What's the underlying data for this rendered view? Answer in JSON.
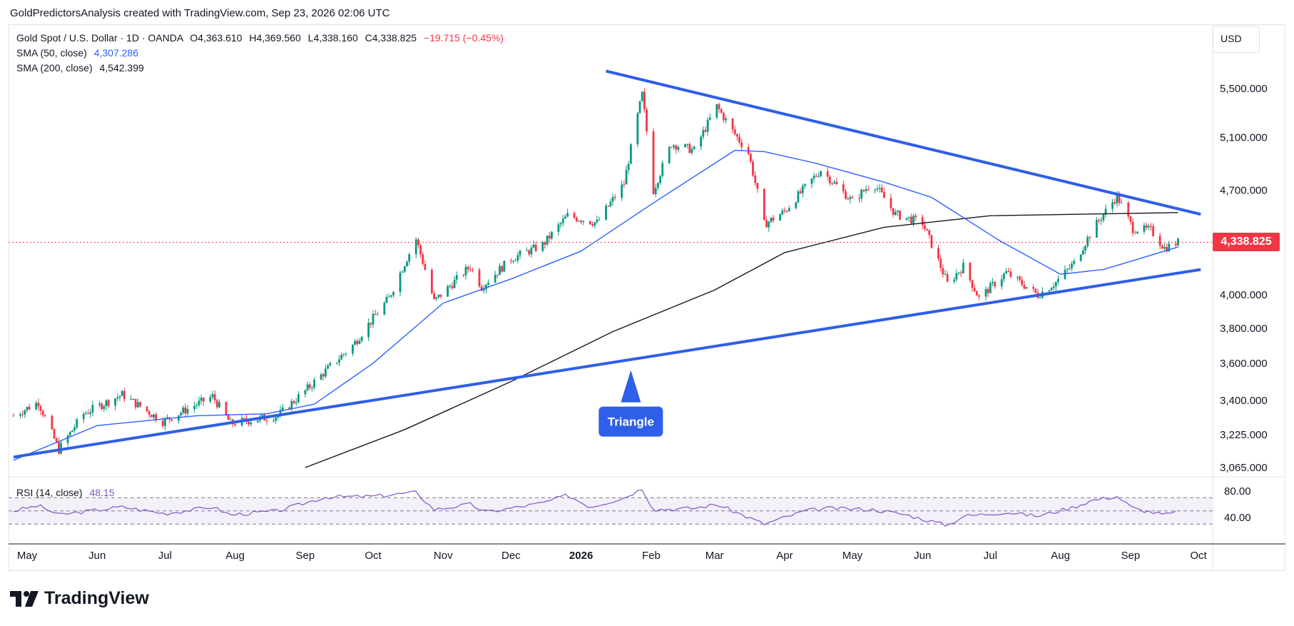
{
  "header": {
    "attribution": "GoldPredictorsAnalysis created with TradingView.com, Sep 23, 2026 02:06 UTC"
  },
  "legend": {
    "symbol": "Gold Spot / U.S. Dollar · 1D · OANDA",
    "open": "O4,363.610",
    "high": "H4,369.560",
    "low": "L4,338.160",
    "close": "C4,338.825",
    "change": "−19.715 (−0.45%)",
    "sma50_label": "SMA (50, close)",
    "sma50_value": "4,307.286",
    "sma200_label": "SMA (200, close)",
    "sma200_value": "4,542.399",
    "rsi_label": "RSI (14, close)",
    "rsi_value": "48.15"
  },
  "price_scale": {
    "currency": "USD",
    "last_price": "4,338.825"
  },
  "brand": {
    "name": "TradingView"
  },
  "colors": {
    "up": "#089981",
    "down": "#f23645",
    "sma50": "#2962ff",
    "sma200": "#131722",
    "trendline": "#2f5fe8",
    "rsi": "#7e57c2",
    "last_price": "#f23645"
  },
  "chart_data": {
    "type": "candlestick",
    "title": "Gold Spot / U.S. Dollar · 1D · OANDA",
    "y_ticks": [
      3065,
      3225,
      3400,
      3600,
      3800,
      4000,
      4700,
      5100,
      5500
    ],
    "y_tick_labels": [
      "3,065.000",
      "3,225.000",
      "3,400.000",
      "3,600.000",
      "3,800.000",
      "4,000.000",
      "4,700.000",
      "5,100.000",
      "5,500.000"
    ],
    "x_tick_labels": [
      "May",
      "Jun",
      "Jul",
      "Aug",
      "Sep",
      "Oct",
      "Nov",
      "Dec",
      "2026",
      "Feb",
      "Mar",
      "Apr",
      "May",
      "Jun",
      "Jul",
      "Aug",
      "Sep",
      "Oct"
    ],
    "x_tick_dates": [
      "2025-05-01",
      "2025-06-01",
      "2025-07-01",
      "2025-08-01",
      "2025-09-01",
      "2025-10-01",
      "2025-11-01",
      "2025-12-01",
      "2026-01-01",
      "2026-02-01",
      "2026-03-01",
      "2026-04-01",
      "2026-05-01",
      "2026-06-01",
      "2026-07-01",
      "2026-08-01",
      "2026-09-01",
      "2026-10-01"
    ],
    "price_path": [
      {
        "date": "2025-04-25",
        "price": 3320
      },
      {
        "date": "2025-05-06",
        "price": 3390
      },
      {
        "date": "2025-05-15",
        "price": 3150
      },
      {
        "date": "2025-05-26",
        "price": 3330
      },
      {
        "date": "2025-06-12",
        "price": 3430
      },
      {
        "date": "2025-06-30",
        "price": 3290
      },
      {
        "date": "2025-07-22",
        "price": 3420
      },
      {
        "date": "2025-07-30",
        "price": 3280
      },
      {
        "date": "2025-08-20",
        "price": 3320
      },
      {
        "date": "2025-09-01",
        "price": 3450
      },
      {
        "date": "2025-09-22",
        "price": 3700
      },
      {
        "date": "2025-10-08",
        "price": 3980
      },
      {
        "date": "2025-10-20",
        "price": 4360
      },
      {
        "date": "2025-10-28",
        "price": 3960
      },
      {
        "date": "2025-11-13",
        "price": 4180
      },
      {
        "date": "2025-11-18",
        "price": 4050
      },
      {
        "date": "2025-12-01",
        "price": 4230
      },
      {
        "date": "2025-12-15",
        "price": 4320
      },
      {
        "date": "2025-12-26",
        "price": 4520
      },
      {
        "date": "2026-01-08",
        "price": 4470
      },
      {
        "date": "2026-01-20",
        "price": 4750
      },
      {
        "date": "2026-01-28",
        "price": 5450
      },
      {
        "date": "2026-02-02",
        "price": 4700
      },
      {
        "date": "2026-02-10",
        "price": 5050
      },
      {
        "date": "2026-02-20",
        "price": 5000
      },
      {
        "date": "2026-03-02",
        "price": 5350
      },
      {
        "date": "2026-03-09",
        "price": 5150
      },
      {
        "date": "2026-03-16",
        "price": 4980
      },
      {
        "date": "2026-03-23",
        "price": 4460
      },
      {
        "date": "2026-04-01",
        "price": 4550
      },
      {
        "date": "2026-04-10",
        "price": 4720
      },
      {
        "date": "2026-04-17",
        "price": 4850
      },
      {
        "date": "2026-05-01",
        "price": 4620
      },
      {
        "date": "2026-05-10",
        "price": 4760
      },
      {
        "date": "2026-05-20",
        "price": 4530
      },
      {
        "date": "2026-06-01",
        "price": 4470
      },
      {
        "date": "2026-06-12",
        "price": 4070
      },
      {
        "date": "2026-06-19",
        "price": 4180
      },
      {
        "date": "2026-06-26",
        "price": 3980
      },
      {
        "date": "2026-07-08",
        "price": 4140
      },
      {
        "date": "2026-07-22",
        "price": 4000
      },
      {
        "date": "2026-07-30",
        "price": 4080
      },
      {
        "date": "2026-08-07",
        "price": 4200
      },
      {
        "date": "2026-08-15",
        "price": 4420
      },
      {
        "date": "2026-08-26",
        "price": 4660
      },
      {
        "date": "2026-09-02",
        "price": 4430
      },
      {
        "date": "2026-09-10",
        "price": 4420
      },
      {
        "date": "2026-09-16",
        "price": 4300
      },
      {
        "date": "2026-09-22",
        "price": 4339
      }
    ],
    "sma50": [
      {
        "date": "2025-04-25",
        "price": 3100
      },
      {
        "date": "2025-06-01",
        "price": 3270
      },
      {
        "date": "2025-07-15",
        "price": 3320
      },
      {
        "date": "2025-08-15",
        "price": 3330
      },
      {
        "date": "2025-09-05",
        "price": 3380
      },
      {
        "date": "2025-10-01",
        "price": 3600
      },
      {
        "date": "2025-11-01",
        "price": 3950
      },
      {
        "date": "2025-12-01",
        "price": 4100
      },
      {
        "date": "2026-01-01",
        "price": 4280
      },
      {
        "date": "2026-02-01",
        "price": 4600
      },
      {
        "date": "2026-03-10",
        "price": 5000
      },
      {
        "date": "2026-03-23",
        "price": 4990
      },
      {
        "date": "2026-04-15",
        "price": 4900
      },
      {
        "date": "2026-05-15",
        "price": 4760
      },
      {
        "date": "2026-06-05",
        "price": 4650
      },
      {
        "date": "2026-07-05",
        "price": 4350
      },
      {
        "date": "2026-08-01",
        "price": 4130
      },
      {
        "date": "2026-08-20",
        "price": 4160
      },
      {
        "date": "2026-09-22",
        "price": 4307
      }
    ],
    "sma200": [
      {
        "date": "2025-09-01",
        "price": 3065
      },
      {
        "date": "2025-10-15",
        "price": 3250
      },
      {
        "date": "2025-12-01",
        "price": 3500
      },
      {
        "date": "2026-01-15",
        "price": 3780
      },
      {
        "date": "2026-03-01",
        "price": 4030
      },
      {
        "date": "2026-04-01",
        "price": 4270
      },
      {
        "date": "2026-05-15",
        "price": 4440
      },
      {
        "date": "2026-07-01",
        "price": 4520
      },
      {
        "date": "2026-09-22",
        "price": 4542
      }
    ],
    "triangle_upper": [
      {
        "date": "2026-01-12",
        "price": 5650
      },
      {
        "date": "2026-10-02",
        "price": 4530
      }
    ],
    "triangle_lower": [
      {
        "date": "2025-04-25",
        "price": 3115
      },
      {
        "date": "2026-10-02",
        "price": 4160
      }
    ],
    "annotations": [
      {
        "text": "Triangle",
        "date": "2026-01-23",
        "price": 3215
      }
    ],
    "rsi": {
      "ylim": [
        20,
        100
      ],
      "ticks": [
        40,
        80
      ],
      "tick_labels": [
        "40.00",
        "80.00"
      ],
      "overbought": 70,
      "middle": 50,
      "oversold": 30,
      "points": [
        {
          "date": "2025-04-25",
          "value": 50
        },
        {
          "date": "2025-05-06",
          "value": 58
        },
        {
          "date": "2025-05-15",
          "value": 44
        },
        {
          "date": "2025-06-12",
          "value": 56
        },
        {
          "date": "2025-07-01",
          "value": 46
        },
        {
          "date": "2025-07-22",
          "value": 56
        },
        {
          "date": "2025-07-30",
          "value": 44
        },
        {
          "date": "2025-08-20",
          "value": 50
        },
        {
          "date": "2025-09-10",
          "value": 71
        },
        {
          "date": "2025-10-01",
          "value": 72
        },
        {
          "date": "2025-10-20",
          "value": 78
        },
        {
          "date": "2025-10-28",
          "value": 52
        },
        {
          "date": "2025-11-13",
          "value": 60
        },
        {
          "date": "2025-11-20",
          "value": 48
        },
        {
          "date": "2025-12-15",
          "value": 62
        },
        {
          "date": "2025-12-26",
          "value": 74
        },
        {
          "date": "2026-01-05",
          "value": 56
        },
        {
          "date": "2026-01-20",
          "value": 70
        },
        {
          "date": "2026-01-28",
          "value": 84
        },
        {
          "date": "2026-02-02",
          "value": 52
        },
        {
          "date": "2026-02-20",
          "value": 54
        },
        {
          "date": "2026-03-02",
          "value": 60
        },
        {
          "date": "2026-03-23",
          "value": 30
        },
        {
          "date": "2026-04-10",
          "value": 50
        },
        {
          "date": "2026-04-20",
          "value": 54
        },
        {
          "date": "2026-05-10",
          "value": 52
        },
        {
          "date": "2026-05-25",
          "value": 44
        },
        {
          "date": "2026-06-12",
          "value": 28
        },
        {
          "date": "2026-06-19",
          "value": 42
        },
        {
          "date": "2026-07-08",
          "value": 48
        },
        {
          "date": "2026-07-22",
          "value": 42
        },
        {
          "date": "2026-08-07",
          "value": 56
        },
        {
          "date": "2026-08-15",
          "value": 66
        },
        {
          "date": "2026-08-26",
          "value": 72
        },
        {
          "date": "2026-09-02",
          "value": 54
        },
        {
          "date": "2026-09-16",
          "value": 44
        },
        {
          "date": "2026-09-22",
          "value": 48
        }
      ]
    }
  }
}
